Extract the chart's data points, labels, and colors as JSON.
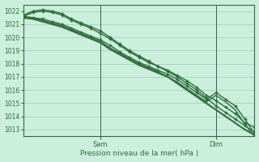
{
  "title": "",
  "xlabel": "Pression niveau de la mer( hPa )",
  "ylabel": "",
  "bg_color": "#cceedd",
  "grid_color": "#99ccbb",
  "line_color": "#2d6e3a",
  "ylim": [
    1012.5,
    1022.5
  ],
  "xlim": [
    0,
    48
  ],
  "yticks": [
    1013,
    1014,
    1015,
    1016,
    1017,
    1018,
    1019,
    1020,
    1021,
    1022
  ],
  "xtick_positions": [
    16,
    40
  ],
  "xtick_labels": [
    "Sam",
    "Dim"
  ],
  "series": [
    {
      "x": [
        0,
        2,
        4,
        6,
        8,
        10,
        12,
        14,
        16,
        18,
        20,
        22,
        24,
        26,
        28,
        30,
        32,
        34,
        36,
        38,
        40,
        42,
        44,
        46,
        48
      ],
      "y": [
        1021.7,
        1022.0,
        1022.1,
        1022.0,
        1021.8,
        1021.4,
        1021.1,
        1020.8,
        1020.5,
        1020.0,
        1019.5,
        1019.0,
        1018.6,
        1018.2,
        1017.8,
        1017.4,
        1017.0,
        1016.5,
        1016.0,
        1015.4,
        1014.8,
        1014.3,
        1013.8,
        1013.3,
        1012.8
      ],
      "marker": "+",
      "lw": 1.0
    },
    {
      "x": [
        0,
        2,
        4,
        6,
        8,
        10,
        12,
        14,
        16,
        18,
        20,
        22,
        24,
        26,
        28,
        30,
        32,
        34,
        36,
        38,
        40,
        42,
        44,
        46,
        48
      ],
      "y": [
        1021.6,
        1021.9,
        1022.0,
        1021.9,
        1021.7,
        1021.3,
        1021.0,
        1020.7,
        1020.3,
        1019.9,
        1019.4,
        1018.9,
        1018.5,
        1018.1,
        1017.8,
        1017.5,
        1017.1,
        1016.7,
        1016.2,
        1015.6,
        1015.2,
        1014.7,
        1014.2,
        1013.5,
        1013.2
      ],
      "marker": "+",
      "lw": 1.0
    },
    {
      "x": [
        0,
        2,
        4,
        6,
        8,
        10,
        12,
        14,
        16,
        18,
        20,
        22,
        24,
        26,
        28,
        30,
        32,
        34,
        36,
        38,
        40,
        42,
        44,
        46,
        48
      ],
      "y": [
        1021.5,
        1021.5,
        1021.4,
        1021.2,
        1021.0,
        1020.7,
        1020.4,
        1020.1,
        1019.8,
        1019.4,
        1018.9,
        1018.5,
        1018.1,
        1017.8,
        1017.5,
        1017.2,
        1016.8,
        1016.3,
        1015.8,
        1015.3,
        1015.8,
        1015.3,
        1014.8,
        1013.8,
        1012.7
      ],
      "marker": "+",
      "lw": 1.0
    },
    {
      "x": [
        0,
        2,
        4,
        6,
        8,
        10,
        12,
        14,
        16,
        18,
        20,
        22,
        24,
        26,
        28,
        30,
        32,
        34,
        36,
        38,
        40,
        42,
        44,
        46,
        48
      ],
      "y": [
        1021.5,
        1021.4,
        1021.2,
        1021.0,
        1020.8,
        1020.5,
        1020.2,
        1019.9,
        1019.6,
        1019.1,
        1018.7,
        1018.3,
        1017.9,
        1017.6,
        1017.3,
        1017.0,
        1016.5,
        1016.0,
        1015.5,
        1015.0,
        1014.5,
        1014.0,
        1013.5,
        1013.0,
        1012.6
      ],
      "marker": null,
      "lw": 1.5
    },
    {
      "x": [
        0,
        2,
        4,
        6,
        8,
        10,
        12,
        14,
        16,
        18,
        20,
        22,
        24,
        26,
        28,
        30,
        32,
        34,
        36,
        38,
        40,
        42,
        44,
        46,
        48
      ],
      "y": [
        1021.6,
        1021.5,
        1021.3,
        1021.1,
        1020.9,
        1020.6,
        1020.3,
        1020.0,
        1019.7,
        1019.2,
        1018.8,
        1018.4,
        1018.0,
        1017.7,
        1017.4,
        1017.0,
        1016.6,
        1016.1,
        1015.6,
        1015.1,
        1015.6,
        1015.1,
        1014.5,
        1013.4,
        1012.5
      ],
      "marker": null,
      "lw": 1.0
    }
  ]
}
